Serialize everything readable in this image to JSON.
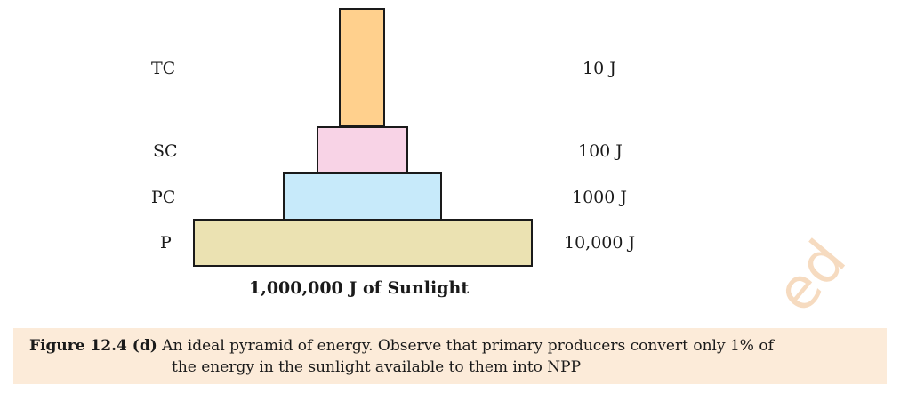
{
  "tiers": [
    {
      "level": "TC",
      "energy": "10 J",
      "color": "#ffd08d"
    },
    {
      "level": "SC",
      "energy": "100 J",
      "color": "#f8d3e6"
    },
    {
      "level": "PC",
      "energy": "1000 J",
      "color": "#c7eafa"
    },
    {
      "level": "P",
      "energy": "10,000 J",
      "color": "#ebe2b2"
    }
  ],
  "base_label": "1,000,000 J of Sunlight",
  "caption": {
    "lead": "Figure 12.4 (d)",
    "line1": " An ideal pyramid of energy. Observe that primary producers convert only 1% of",
    "line2": "the energy in the sunlight available to them into NPP",
    "background": "#fcebd9"
  },
  "watermark": "ed"
}
